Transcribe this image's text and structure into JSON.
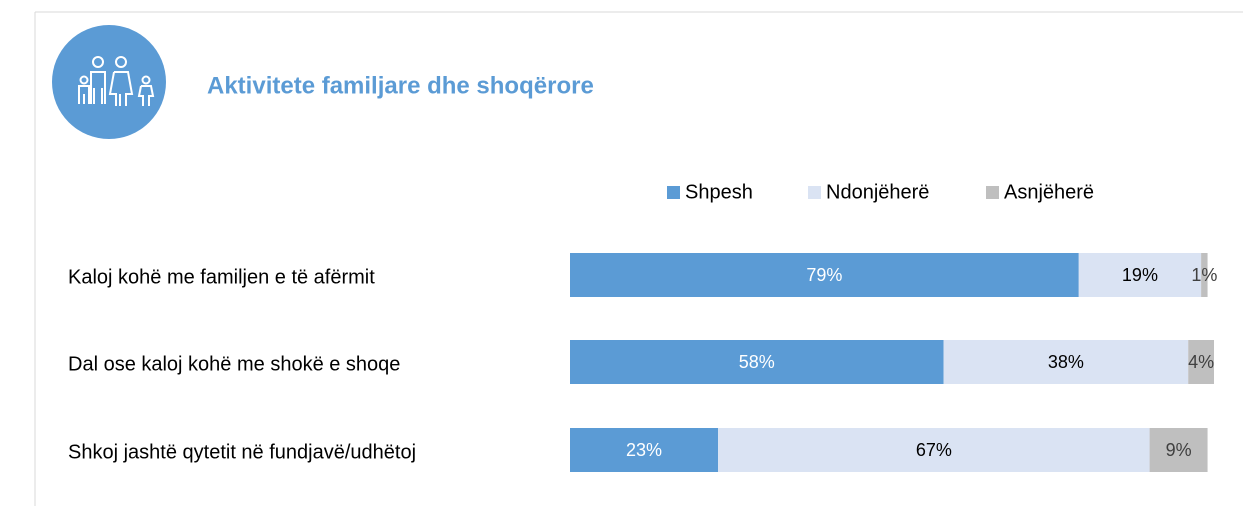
{
  "chart_data": {
    "type": "stacked_barh",
    "title": "Aktivitete familjare dhe shoqërore",
    "categories": [
      "Kaloj kohë me familjen e të afërmit",
      "Dal ose kaloj kohë me shokë e shoqe",
      "Shkoj jashtë qytetit në fundjavë/udhëtoj"
    ],
    "series": [
      {
        "name": "Shpesh",
        "color": "#5b9bd5",
        "label_color": "#ffffff",
        "values": [
          79,
          58,
          23
        ],
        "value_labels": [
          "79%",
          "58%",
          "23%"
        ]
      },
      {
        "name": "Ndonjëherë",
        "color": "#dae3f3",
        "label_color": "#000000",
        "values": [
          19,
          38,
          67
        ],
        "value_labels": [
          "19%",
          "38%",
          "67%"
        ]
      },
      {
        "name": "Asnjëherë",
        "color": "#bfbfbf",
        "label_color": "#404040",
        "values": [
          1,
          4,
          9
        ],
        "value_labels": [
          "1%",
          "4%",
          "9%"
        ]
      }
    ],
    "xlim": [
      0,
      100
    ],
    "legend": "top"
  }
}
